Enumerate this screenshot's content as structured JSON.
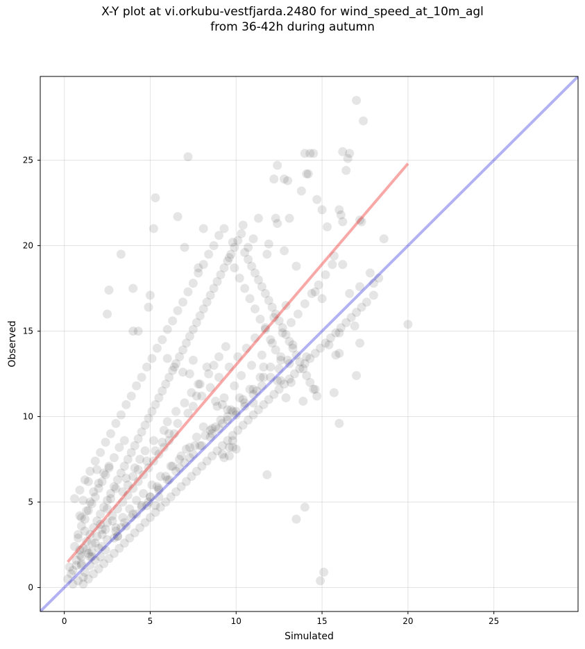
{
  "chart_data": {
    "type": "scatter",
    "title_line1": "X-Y plot at vi.orkubu-vestfjarda.2480 for wind_speed_at_10m_agl",
    "title_line2": "from 36-42h during autumn",
    "xlabel": "Simulated",
    "ylabel": "Observed",
    "xlim": [
      -1.4,
      29.9
    ],
    "ylim": [
      -1.4,
      29.9
    ],
    "xticks": [
      0,
      5,
      10,
      15,
      20,
      25
    ],
    "yticks": [
      0,
      5,
      10,
      15,
      20,
      25
    ],
    "grid": true,
    "point_color": "#000000",
    "point_alpha": 0.1,
    "regression_line": {
      "color": "#f03030",
      "x": [
        0.2,
        20.0
      ],
      "y": [
        1.5,
        24.8
      ]
    },
    "identity_line": {
      "color": "#2020e0",
      "x": [
        -1.4,
        29.9
      ],
      "y": [
        -1.4,
        29.9
      ]
    },
    "points_x": [
      17.0,
      17.4,
      14.0,
      14.3,
      14.5,
      14.1,
      16.2,
      16.6,
      16.5,
      16.4,
      7.2,
      12.4,
      13.0,
      12.8,
      12.2,
      13.8,
      14.2,
      15.0,
      15.3,
      14.7,
      16.2,
      16.0,
      16.1,
      17.3,
      17.2,
      5.3,
      6.6,
      5.2,
      8.1,
      9.8,
      7.0,
      7.8,
      3.3,
      2.6,
      4.9,
      4.0,
      5.0,
      2.5,
      4.3,
      4.0,
      10.4,
      11.0,
      10.7,
      11.3,
      12.4,
      12.3,
      13.1,
      11.9,
      11.8,
      12.8,
      13.5,
      14.6,
      15.0,
      16.6,
      16.2,
      15.7,
      17.2,
      18.3,
      18.0,
      18.6,
      17.8,
      16.0,
      16.9,
      20.0,
      17.0,
      17.2,
      15.4,
      15.8,
      16.0,
      13.2,
      12.9,
      13.9,
      14.6,
      14.1,
      13.1,
      12.4,
      11.6,
      11.0,
      10.5,
      10.0,
      9.5,
      8.8,
      8.5,
      9.8,
      9.6,
      9.2,
      10.0,
      9.6,
      9.3,
      9.8,
      12.6,
      11.8,
      16.0,
      15.7,
      11.2,
      6.0,
      6.4,
      7.3,
      7.8,
      8.3,
      7.5,
      6.9,
      7.7,
      8.8,
      9.5,
      9.2,
      5.3,
      4.8,
      5.5,
      3.1,
      2.1,
      1.5,
      1.1,
      0.8,
      0.5,
      0.4,
      0.2,
      0.3,
      0.7,
      1.0,
      0.9,
      1.4,
      1.8,
      1.6,
      2.2,
      2.4,
      2.8,
      3.0,
      3.4,
      3.8,
      4.2,
      4.6,
      5.1,
      5.6,
      6.2,
      6.7,
      7.1,
      7.6,
      8.2,
      8.6,
      9.1,
      9.7,
      10.2,
      10.8,
      11.4,
      12.0,
      12.6,
      13.3,
      0.6,
      0.8,
      1.2,
      1.0,
      1.3,
      1.5,
      1.7,
      2.0,
      2.3,
      2.6,
      2.9,
      3.2,
      3.5,
      1.9,
      1.4,
      1.1,
      0.9,
      2.1,
      2.5,
      2.7,
      3.0,
      3.6,
      4.1,
      4.4,
      4.7,
      5.2,
      5.8,
      6.0,
      6.5,
      7.0,
      7.4,
      7.9,
      8.4,
      8.7,
      9.0,
      9.4,
      1.6,
      2.2,
      2.9,
      3.3,
      3.9,
      4.5,
      5.0,
      5.4,
      5.9,
      6.3,
      6.8,
      7.3,
      7.7,
      8.1,
      8.9,
      9.3,
      9.9,
      10.3,
      10.9,
      11.5,
      12.1,
      12.7,
      13.2,
      13.6,
      14.0,
      14.4,
      14.8,
      15.2,
      15.6,
      3.4,
      3.7,
      4.0,
      4.3,
      4.8,
      5.3,
      5.7,
      6.1,
      6.6,
      7.2,
      7.5,
      8.0,
      8.5,
      9.0,
      9.6,
      10.1,
      10.6,
      11.1,
      11.7,
      12.2,
      12.9,
      1.2,
      1.8,
      2.4,
      3.1,
      3.6,
      4.2,
      4.9,
      5.5,
      6.1,
      6.7,
      7.3,
      7.9,
      8.6,
      9.2,
      9.8,
      10.4,
      11.0,
      11.6,
      0.5,
      0.7,
      1.0,
      1.3,
      1.6,
      1.9,
      2.2,
      2.5,
      2.8,
      3.1,
      3.4,
      3.7,
      4.0,
      4.3,
      4.6,
      4.9,
      5.2,
      5.5,
      5.8,
      6.1,
      6.4,
      1.1,
      1.4,
      1.7,
      2.0,
      2.3,
      2.6,
      2.9,
      3.2,
      3.5,
      3.8,
      4.1,
      4.4,
      4.7,
      5.0,
      5.3,
      5.6,
      5.9,
      6.2,
      6.5,
      6.8,
      7.1,
      7.4,
      7.7,
      8.0,
      8.3,
      8.6,
      8.9,
      9.2,
      9.5,
      9.8,
      10.1,
      10.4,
      10.7,
      11.0,
      11.3,
      11.6,
      11.9,
      12.2,
      12.5,
      12.8,
      13.1,
      13.4,
      13.7,
      14.0,
      14.3,
      14.6,
      14.9,
      15.2,
      15.5,
      15.8,
      16.1,
      16.4,
      16.7,
      17.0,
      17.3,
      17.6,
      18.0,
      0.8,
      1.0,
      1.2,
      1.4,
      1.6,
      1.8,
      2.0,
      2.2,
      2.4,
      2.6,
      0.9,
      1.1,
      1.3,
      1.5,
      1.7,
      1.9,
      2.1,
      2.3,
      2.5,
      2.7,
      2.9,
      3.1,
      3.3,
      3.5,
      3.7,
      3.9,
      4.1,
      4.3,
      4.5,
      4.7,
      4.9,
      5.1,
      5.3,
      5.5,
      5.7,
      5.9,
      6.1,
      6.3,
      6.5,
      6.7,
      6.9,
      7.1,
      7.3,
      7.5,
      7.7,
      7.9,
      8.1,
      8.3,
      8.5,
      8.7,
      8.9,
      9.1,
      9.3,
      9.5,
      9.7,
      9.9,
      10.1,
      10.3,
      10.5,
      10.7,
      10.9,
      11.1,
      11.3,
      11.5,
      11.7,
      11.9,
      12.1,
      12.3,
      12.5,
      12.7,
      12.9,
      13.1,
      13.3,
      13.5,
      13.7,
      13.9,
      14.1,
      14.3,
      14.5,
      14.7,
      14.9,
      15.1,
      1.0,
      1.5,
      2.0,
      2.5,
      3.0,
      3.5,
      4.0,
      4.5,
      5.0,
      5.5,
      6.0,
      6.5,
      7.0,
      7.5,
      8.0,
      8.5,
      9.0,
      9.5,
      10.0,
      10.5,
      11.0,
      11.5,
      12.0,
      12.5,
      13.0,
      13.5,
      14.0,
      0.6,
      0.9,
      1.2,
      1.5,
      1.8,
      2.1,
      2.4,
      2.7,
      3.0,
      3.3,
      3.6,
      3.9,
      4.2,
      4.5,
      4.8,
      5.1,
      5.4,
      5.7,
      6.0,
      6.3,
      6.6,
      6.9,
      7.2,
      7.5,
      7.8,
      8.1,
      8.4,
      8.7,
      9.0,
      9.3,
      9.6,
      9.9,
      10.2,
      10.5,
      10.8,
      11.1,
      11.4,
      11.7,
      12.0,
      12.3,
      12.6,
      12.9,
      13.2
    ],
    "points_y": [
      28.5,
      27.3,
      25.4,
      25.4,
      25.4,
      24.2,
      25.5,
      25.4,
      25.1,
      24.4,
      25.2,
      24.7,
      23.8,
      23.9,
      23.9,
      23.2,
      24.2,
      22.1,
      21.1,
      22.7,
      21.4,
      22.1,
      21.8,
      21.4,
      21.5,
      22.8,
      21.7,
      21.0,
      21.0,
      20.2,
      19.9,
      18.7,
      19.5,
      17.4,
      16.4,
      17.5,
      17.1,
      16.0,
      15.0,
      15.0,
      21.2,
      20.4,
      19.9,
      21.6,
      21.3,
      21.6,
      21.6,
      20.1,
      19.5,
      19.7,
      18.8,
      17.3,
      16.9,
      17.2,
      18.9,
      19.4,
      17.6,
      18.1,
      17.8,
      20.4,
      18.4,
      14.9,
      15.3,
      15.4,
      12.4,
      14.3,
      14.2,
      13.6,
      13.7,
      12.0,
      11.1,
      10.9,
      11.6,
      13.5,
      13.1,
      12.1,
      12.9,
      10.8,
      10.6,
      10.1,
      10.0,
      9.4,
      9.2,
      8.6,
      8.2,
      7.8,
      8.1,
      7.7,
      7.6,
      8.2,
      12.1,
      6.6,
      9.6,
      11.4,
      11.5,
      13.4,
      12.9,
      12.5,
      11.9,
      12.9,
      13.3,
      12.6,
      11.2,
      10.9,
      10.4,
      10.7,
      4.8,
      4.8,
      5.3,
      3.0,
      1.8,
      1.3,
      0.6,
      0.4,
      0.2,
      0.8,
      0.5,
      1.2,
      1.6,
      1.4,
      2.2,
      2.0,
      2.6,
      2.1,
      3.1,
      3.4,
      3.9,
      3.5,
      4.1,
      4.6,
      5.1,
      5.5,
      6.0,
      6.5,
      7.1,
      7.5,
      8.1,
      8.3,
      8.9,
      9.3,
      9.8,
      10.4,
      11.1,
      11.6,
      12.3,
      12.9,
      13.5,
      14.2,
      2.4,
      2.9,
      3.3,
      4.1,
      4.5,
      5.0,
      5.6,
      6.1,
      6.7,
      7.1,
      7.6,
      8.2,
      8.6,
      6.9,
      6.2,
      5.1,
      4.2,
      3.7,
      4.6,
      5.2,
      5.8,
      6.4,
      7.0,
      7.5,
      8.0,
      8.6,
      9.2,
      9.7,
      10.3,
      10.8,
      11.4,
      11.9,
      12.5,
      13.0,
      13.5,
      14.1,
      1.8,
      2.4,
      2.9,
      3.5,
      4.1,
      4.7,
      5.3,
      5.9,
      6.5,
      7.1,
      7.7,
      8.2,
      8.8,
      9.4,
      10.6,
      11.1,
      11.8,
      12.4,
      13.0,
      13.6,
      14.3,
      14.9,
      15.5,
      16.0,
      16.6,
      17.2,
      17.7,
      18.3,
      18.9,
      5.6,
      6.0,
      6.5,
      6.9,
      7.4,
      8.0,
      8.5,
      9.0,
      9.6,
      10.2,
      10.6,
      11.2,
      11.7,
      12.3,
      12.9,
      13.5,
      14.0,
      14.6,
      15.2,
      15.8,
      16.5,
      0.9,
      1.6,
      2.2,
      3.0,
      3.6,
      4.3,
      5.0,
      5.7,
      6.3,
      7.0,
      7.6,
      8.3,
      9.0,
      9.6,
      10.3,
      11.0,
      11.6,
      12.3,
      1.0,
      1.3,
      1.8,
      2.2,
      2.6,
      3.0,
      3.4,
      3.8,
      4.2,
      4.6,
      5.0,
      5.4,
      5.8,
      6.2,
      6.6,
      7.0,
      7.4,
      7.8,
      8.2,
      8.6,
      9.0,
      0.2,
      0.5,
      0.8,
      1.1,
      1.4,
      1.7,
      2.0,
      2.3,
      2.6,
      2.9,
      3.2,
      3.5,
      3.8,
      4.1,
      4.4,
      4.7,
      5.0,
      5.3,
      5.6,
      5.9,
      6.2,
      6.5,
      6.8,
      7.1,
      7.4,
      7.7,
      8.0,
      8.3,
      8.6,
      8.9,
      9.2,
      9.5,
      9.8,
      10.1,
      10.4,
      10.7,
      11.0,
      11.3,
      11.6,
      11.9,
      12.2,
      12.5,
      12.8,
      13.1,
      13.4,
      13.7,
      14.0,
      14.3,
      14.6,
      14.9,
      15.2,
      15.5,
      15.8,
      16.1,
      16.4,
      16.7,
      17.1,
      3.1,
      3.6,
      4.0,
      4.5,
      4.9,
      5.3,
      5.8,
      6.2,
      6.6,
      7.0,
      1.9,
      2.3,
      2.7,
      3.1,
      3.5,
      3.9,
      4.3,
      4.7,
      5.1,
      5.5,
      5.9,
      6.3,
      6.7,
      7.1,
      7.5,
      7.9,
      8.3,
      8.7,
      9.1,
      9.5,
      9.9,
      10.3,
      10.7,
      11.1,
      11.5,
      11.9,
      12.3,
      12.7,
      13.1,
      13.5,
      13.9,
      14.3,
      14.7,
      15.1,
      15.5,
      15.9,
      16.3,
      16.7,
      17.1,
      17.5,
      17.9,
      18.3,
      18.7,
      19.1,
      19.5,
      19.9,
      20.3,
      20.7,
      19.6,
      19.2,
      18.8,
      18.4,
      18.0,
      17.6,
      17.2,
      16.8,
      16.4,
      16.0,
      15.6,
      15.2,
      14.8,
      14.4,
      14.0,
      13.6,
      13.2,
      12.8,
      12.4,
      12.0,
      11.6,
      11.2,
      0.4,
      0.9,
      1.3,
      1.8,
      2.3,
      2.8,
      3.3,
      3.8,
      4.3,
      4.8,
      5.3,
      5.8,
      6.3,
      6.8,
      7.3,
      7.8,
      8.3,
      8.8,
      9.3,
      9.8,
      10.3,
      10.8,
      11.3,
      11.8,
      12.3,
      12.8,
      13.3,
      4.0,
      4.7,
      5.2,
      5.7,
      6.3,
      6.8,
      7.4,
      7.9,
      8.5,
      9.0,
      9.6,
      10.1,
      10.7,
      11.2,
      11.8,
      12.3,
      12.9,
      13.4,
      14.0,
      14.5,
      15.1,
      15.6,
      16.2,
      16.7,
      17.3,
      17.8,
      18.4,
      18.9,
      19.5,
      20.0,
      20.6,
      21.0,
      19.3,
      18.7,
      18.1,
      17.5,
      16.9,
      16.3,
      15.7,
      15.1,
      14.5,
      13.9,
      13.3
    ]
  }
}
